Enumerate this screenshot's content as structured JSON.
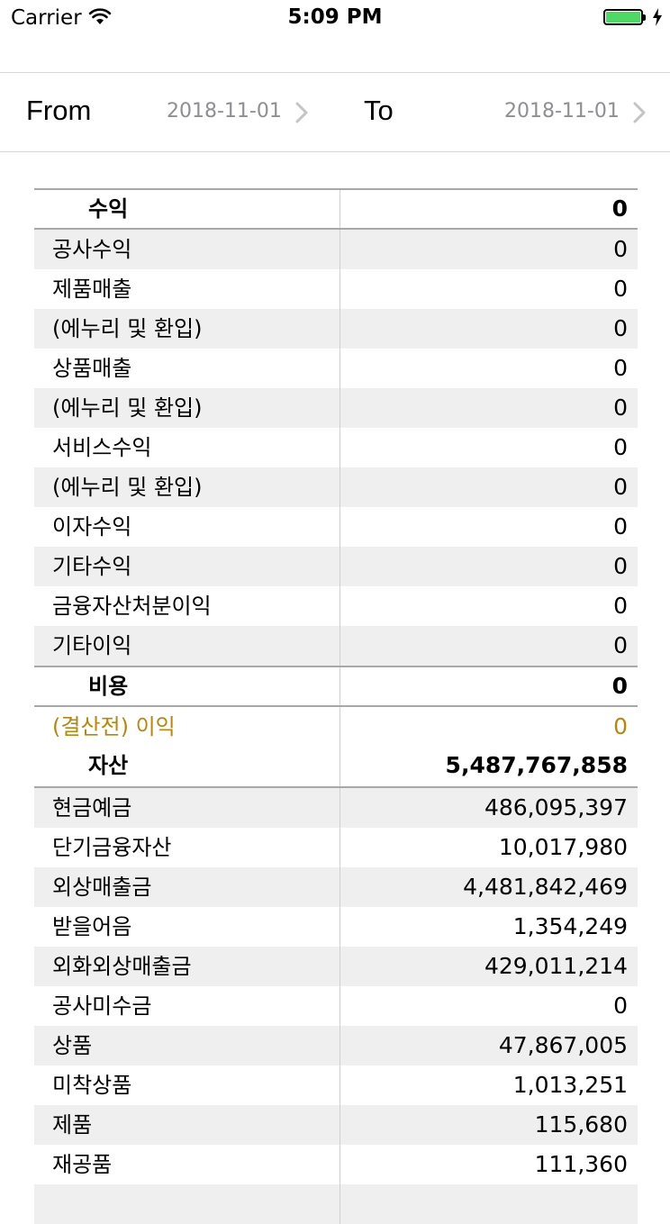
{
  "status_bar": {
    "carrier": "Carrier",
    "time": "5:09 PM",
    "battery_color": "#4cd964"
  },
  "date_range": {
    "from_label": "From",
    "from_value": "2018-11-01",
    "to_label": "To",
    "to_value": "2018-11-01"
  },
  "rows": [
    {
      "name": "수익",
      "value": "0",
      "kind": "header"
    },
    {
      "name": "공사수익",
      "value": "0",
      "kind": "alt"
    },
    {
      "name": "제품매출",
      "value": "0",
      "kind": "plain"
    },
    {
      "name": "(에누리 및 환입)",
      "value": "0",
      "kind": "alt"
    },
    {
      "name": "상품매출",
      "value": "0",
      "kind": "plain"
    },
    {
      "name": "(에누리 및 환입)",
      "value": "0",
      "kind": "alt"
    },
    {
      "name": "서비스수익",
      "value": "0",
      "kind": "plain"
    },
    {
      "name": "(에누리 및 환입)",
      "value": "0",
      "kind": "alt"
    },
    {
      "name": "이자수익",
      "value": "0",
      "kind": "plain"
    },
    {
      "name": "기타수익",
      "value": "0",
      "kind": "alt"
    },
    {
      "name": "금융자산처분이익",
      "value": "0",
      "kind": "plain"
    },
    {
      "name": "기타이익",
      "value": "0",
      "kind": "alt"
    },
    {
      "name": "비용",
      "value": "0",
      "kind": "header"
    },
    {
      "name": "(결산전) 이익",
      "value": "0",
      "kind": "highlight"
    },
    {
      "name": "자산",
      "value": "5,487,767,858",
      "kind": "header"
    },
    {
      "name": "현금예금",
      "value": "486,095,397",
      "kind": "alt"
    },
    {
      "name": "단기금융자산",
      "value": "10,017,980",
      "kind": "plain"
    },
    {
      "name": "외상매출금",
      "value": "4,481,842,469",
      "kind": "alt"
    },
    {
      "name": "받을어음",
      "value": "1,354,249",
      "kind": "plain"
    },
    {
      "name": "외화외상매출금",
      "value": "429,011,214",
      "kind": "alt"
    },
    {
      "name": "공사미수금",
      "value": "0",
      "kind": "plain"
    },
    {
      "name": "상품",
      "value": "47,867,005",
      "kind": "alt"
    },
    {
      "name": "미착상품",
      "value": "1,013,251",
      "kind": "plain"
    },
    {
      "name": "제품",
      "value": "115,680",
      "kind": "alt"
    },
    {
      "name": "재공품",
      "value": "111,360",
      "kind": "plain"
    },
    {
      "name": "",
      "value": "",
      "kind": "alt"
    }
  ],
  "colors": {
    "highlight": "#b8860b",
    "alt_row": "#efefef",
    "secondary_text": "#8e8e93"
  }
}
